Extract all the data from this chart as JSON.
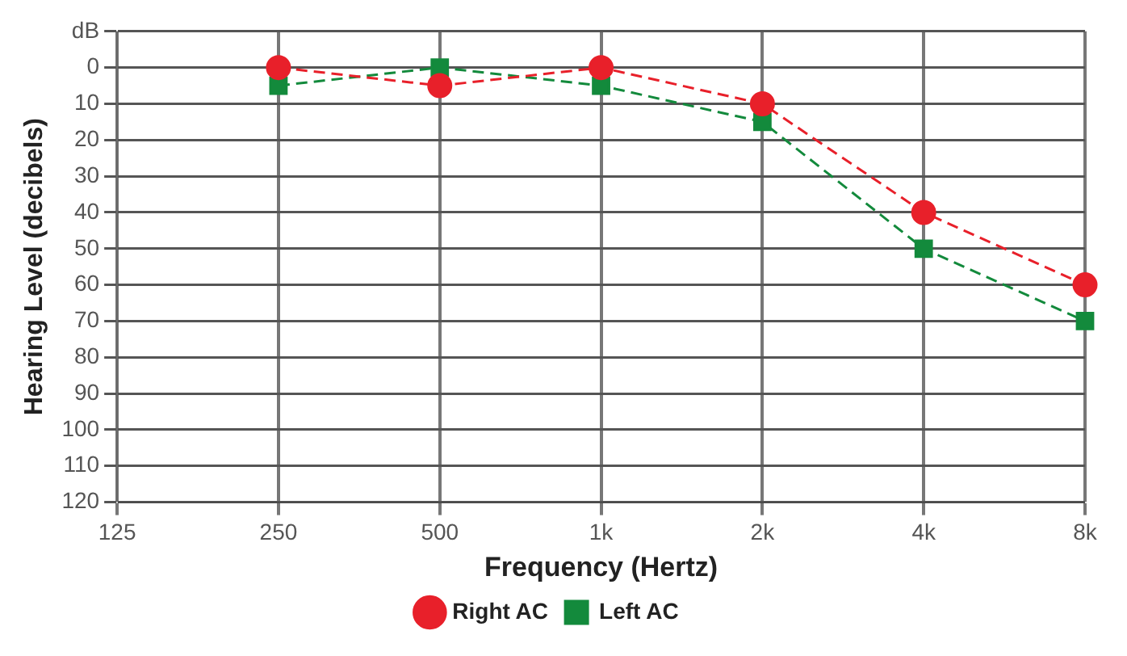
{
  "chart_data": {
    "type": "line",
    "xlabel": "Frequency (Hertz)",
    "ylabel": "Hearing Level (decibels)",
    "categories": [
      "125",
      "250",
      "500",
      "1k",
      "2k",
      "4k",
      "8k"
    ],
    "series": [
      {
        "name": "Right AC",
        "color": "#e8202a",
        "marker": "circle",
        "values": [
          null,
          0,
          5,
          0,
          10,
          40,
          60
        ]
      },
      {
        "name": "Left AC",
        "color": "#138a3c",
        "marker": "square",
        "values": [
          null,
          5,
          0,
          5,
          15,
          50,
          70
        ]
      }
    ],
    "ylim": [
      120,
      -10
    ],
    "yticks": [
      {
        "value": -10,
        "label": "dB"
      },
      0,
      10,
      20,
      30,
      40,
      50,
      60,
      70,
      80,
      90,
      100,
      110,
      120
    ],
    "grid": true,
    "legend": "bottom",
    "line_style": "dashed"
  }
}
